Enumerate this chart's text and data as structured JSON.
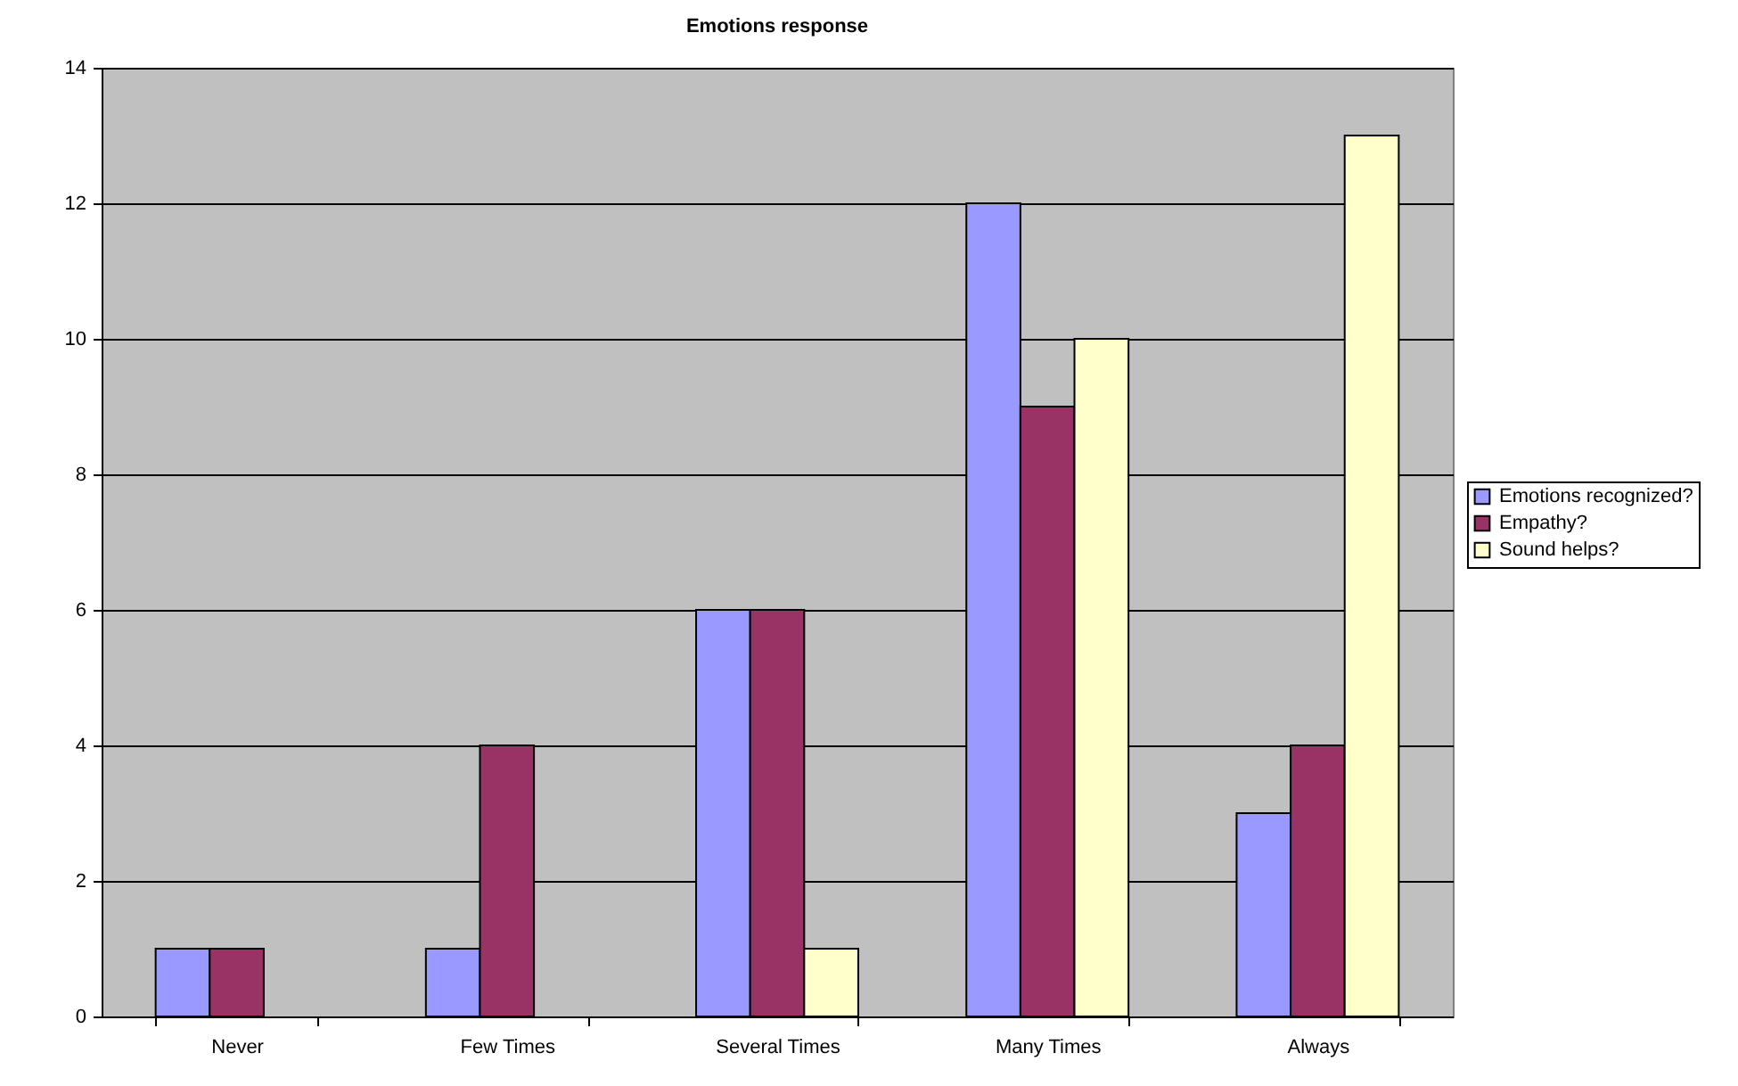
{
  "chart_data": {
    "type": "bar",
    "title": "Emotions response",
    "categories": [
      "Never",
      "Few Times",
      "Several Times",
      "Many Times",
      "Always"
    ],
    "series": [
      {
        "name": "Emotions recognized?",
        "color": "#9999ff",
        "values": [
          1,
          1,
          6,
          12,
          3
        ]
      },
      {
        "name": "Empathy?",
        "color": "#993366",
        "values": [
          1,
          4,
          6,
          9,
          4
        ]
      },
      {
        "name": "Sound helps?",
        "color": "#ffffcc",
        "values": [
          null,
          null,
          1,
          10,
          13
        ]
      }
    ],
    "ylim": [
      0,
      14
    ],
    "yticks": [
      0,
      2,
      4,
      6,
      8,
      10,
      12,
      14
    ],
    "grid": "y",
    "legend": "right"
  }
}
